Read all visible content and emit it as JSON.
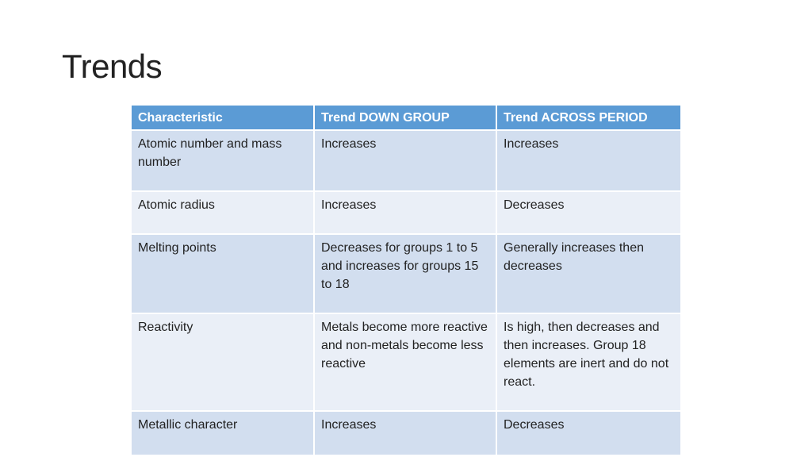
{
  "slide": {
    "title": "Trends"
  },
  "table": {
    "headers": [
      "Characteristic",
      "Trend DOWN GROUP",
      "Trend ACROSS PERIOD"
    ],
    "rows": [
      [
        "Atomic number and mass number",
        "Increases",
        "Increases"
      ],
      [
        "Atomic radius",
        "Increases",
        "Decreases"
      ],
      [
        "Melting points",
        "Decreases for groups 1 to 5 and increases for groups 15 to 18",
        "Generally increases then decreases"
      ],
      [
        "Reactivity",
        "Metals become more reactive and non-metals become less reactive",
        "Is high, then decreases and then increases. Group 18 elements are inert and do not react."
      ],
      [
        "Metallic character",
        "Increases",
        "Decreases"
      ]
    ]
  },
  "colors": {
    "header_bg": "#5b9bd5",
    "row_dark": "#d2deef",
    "row_light": "#eaeff7"
  }
}
